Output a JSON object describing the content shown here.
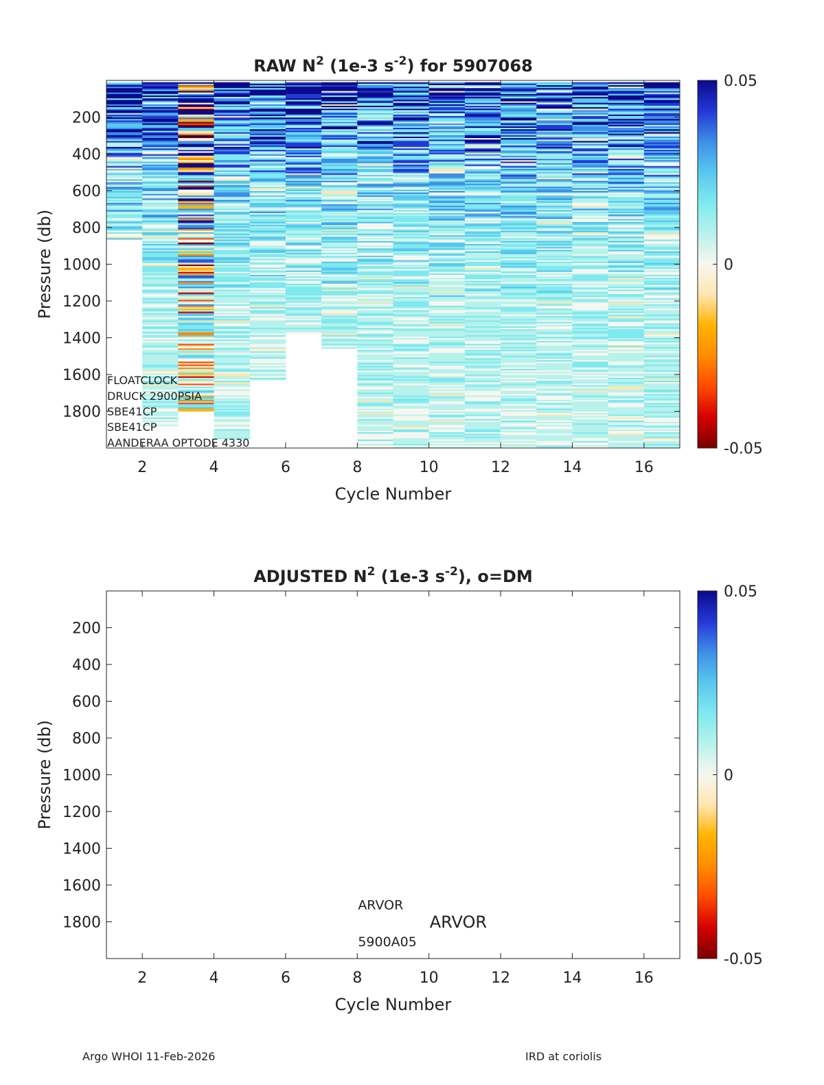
{
  "colors": {
    "colormap": [
      "#7a0000",
      "#d40000",
      "#ff4a00",
      "#ff8c00",
      "#ffb300",
      "#ffe6b0",
      "#f7f7ef",
      "#b8f2ec",
      "#7fe9ef",
      "#58c8ee",
      "#3d8fe8",
      "#2438d6",
      "#0a0a8c"
    ],
    "axis": "#222222",
    "background": "#ffffff"
  },
  "chart_data": [
    {
      "id": "raw",
      "type": "heatmap",
      "title_prefix": "RAW N",
      "title_sup1": "2",
      "title_mid": " (1e-3 s",
      "title_sup2": "-2",
      "title_suffix": ") for 5907068",
      "xlabel": "Cycle Number",
      "ylabel": "Pressure (db)",
      "xlim": [
        1,
        17
      ],
      "ylim": [
        0,
        2000
      ],
      "y_reversed": true,
      "xticks": [
        2,
        4,
        6,
        8,
        10,
        12,
        14,
        16
      ],
      "yticks": [
        200,
        400,
        600,
        800,
        1000,
        1200,
        1400,
        1600,
        1800
      ],
      "clim": [
        -0.05,
        0.05
      ],
      "colorbar_ticks": [
        {
          "value": 0.05,
          "label": "0.05"
        },
        {
          "value": 0,
          "label": "0"
        },
        {
          "value": -0.05,
          "label": "-0.05"
        }
      ],
      "cycles": [
        1,
        2,
        3,
        4,
        5,
        6,
        7,
        8,
        9,
        10,
        11,
        12,
        13,
        14,
        15,
        16
      ],
      "max_pressure": [
        870,
        1880,
        1800,
        1950,
        1630,
        1380,
        1460,
        2000,
        2000,
        2000,
        2000,
        2000,
        2000,
        2000,
        2000,
        2000
      ],
      "annotations": [
        {
          "text": "FLOATCLOCK",
          "x": 1.0,
          "y": 1630
        },
        {
          "text": "DRUCK 2900PSIA",
          "x": 1.0,
          "y": 1715
        },
        {
          "text": "SBE41CP",
          "x": 1.0,
          "y": 1800
        },
        {
          "text": "SBE41CP",
          "x": 1.0,
          "y": 1885
        },
        {
          "text": "AANDERAA OPTODE 4330",
          "x": 1.0,
          "y": 1970
        }
      ]
    },
    {
      "id": "adjusted",
      "type": "heatmap",
      "title_prefix": "ADJUSTED N",
      "title_sup1": "2",
      "title_mid": " (1e-3 s",
      "title_sup2": "-2",
      "title_suffix": "), o=DM",
      "xlabel": "Cycle Number",
      "ylabel": "Pressure (db)",
      "xlim": [
        1,
        17
      ],
      "ylim": [
        0,
        2000
      ],
      "y_reversed": true,
      "xticks": [
        2,
        4,
        6,
        8,
        10,
        12,
        14,
        16
      ],
      "yticks": [
        200,
        400,
        600,
        800,
        1000,
        1200,
        1400,
        1600,
        1800
      ],
      "clim": [
        -0.05,
        0.05
      ],
      "colorbar_ticks": [
        {
          "value": 0.05,
          "label": "0.05"
        },
        {
          "value": 0,
          "label": "0"
        },
        {
          "value": -0.05,
          "label": "-0.05"
        }
      ],
      "cycles": [],
      "annotations": [
        {
          "text": "ARVOR",
          "x": 8.0,
          "y": 1710,
          "size": "small"
        },
        {
          "text": "ARVOR",
          "x": 10.0,
          "y": 1810,
          "size": "large"
        },
        {
          "text": "5900A05",
          "x": 8.0,
          "y": 1910,
          "size": "small"
        }
      ]
    }
  ],
  "footer": {
    "left": "Argo WHOI 11-Feb-2026",
    "right": "IRD at coriolis"
  }
}
